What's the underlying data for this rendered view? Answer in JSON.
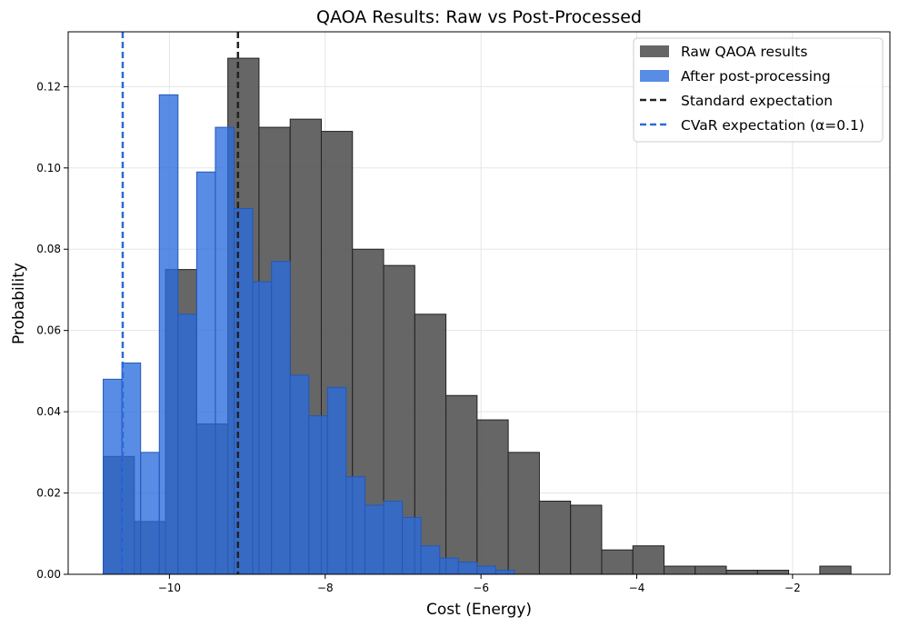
{
  "chart_data": {
    "type": "histogram",
    "title": "QAOA Results: Raw vs Post-Processed",
    "xlabel": "Cost (Energy)",
    "ylabel": "Probability",
    "xlim": [
      -11.3,
      -0.75
    ],
    "ylim": [
      0,
      0.1335
    ],
    "xticks": [
      -10,
      -8,
      -6,
      -4,
      -2
    ],
    "xtick_labels": [
      "−10",
      "−8",
      "−6",
      "−4",
      "−2"
    ],
    "yticks": [
      0.0,
      0.02,
      0.04,
      0.06,
      0.08,
      0.1,
      0.12
    ],
    "ytick_labels": [
      "0.00",
      "0.02",
      "0.04",
      "0.06",
      "0.08",
      "0.10",
      "0.12"
    ],
    "grid": true,
    "legend_position": "top-right",
    "series": [
      {
        "name": "Raw QAOA results",
        "color": "#555555",
        "bin_edges": [
          -10.85,
          -10.45,
          -10.05,
          -9.65,
          -9.25,
          -8.85,
          -8.45,
          -8.05,
          -7.65,
          -7.25,
          -6.85,
          -6.45,
          -6.05,
          -5.65,
          -5.25,
          -4.85,
          -4.45,
          -4.05,
          -3.65,
          -3.25,
          -2.85,
          -2.45,
          -2.05,
          -1.65,
          -1.25
        ],
        "values": [
          0.029,
          0.013,
          0.075,
          0.037,
          0.127,
          0.11,
          0.112,
          0.109,
          0.08,
          0.076,
          0.064,
          0.044,
          0.038,
          0.03,
          0.018,
          0.017,
          0.006,
          0.007,
          0.002,
          0.002,
          0.001,
          0.001,
          0.0,
          0.002
        ]
      },
      {
        "name": "After post-processing",
        "color": "#2a6bdc",
        "bin_edges": [
          -10.85,
          -10.61,
          -10.37,
          -10.13,
          -9.89,
          -9.65,
          -9.41,
          -9.17,
          -8.93,
          -8.69,
          -8.45,
          -8.21,
          -7.97,
          -7.73,
          -7.49,
          -7.25,
          -7.01,
          -6.77,
          -6.53,
          -6.29,
          -6.05,
          -5.81,
          -5.57
        ],
        "values": [
          0.048,
          0.052,
          0.03,
          0.118,
          0.064,
          0.099,
          0.11,
          0.09,
          0.072,
          0.077,
          0.049,
          0.039,
          0.046,
          0.024,
          0.017,
          0.018,
          0.014,
          0.007,
          0.004,
          0.003,
          0.002,
          0.001,
          0.001
        ]
      }
    ],
    "vlines": [
      {
        "name": "Standard expectation",
        "x": -9.12,
        "color": "#222222",
        "style": "dashed"
      },
      {
        "name": "CVaR expectation (α=0.1)",
        "x": -10.6,
        "color": "#2a6bdc",
        "style": "dashed"
      }
    ]
  }
}
